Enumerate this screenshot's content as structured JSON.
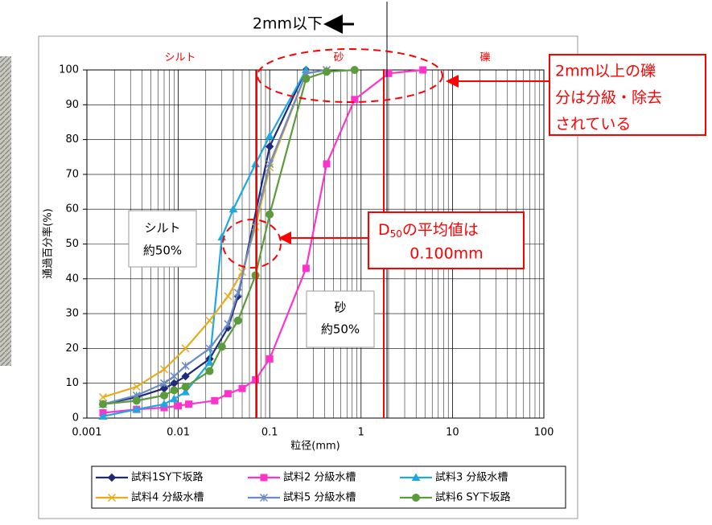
{
  "chart_data": {
    "type": "line",
    "xlabel": "粒径(mm)",
    "ylabel": "通過百分率(%)",
    "log_x": true,
    "grid": true,
    "xlim": [
      0.001,
      100
    ],
    "xticks": [
      0.001,
      0.01,
      0.1,
      1,
      10,
      100
    ],
    "ylim": [
      0,
      100
    ],
    "yticks": [
      0,
      10,
      20,
      30,
      40,
      50,
      60,
      70,
      80,
      90,
      100
    ],
    "series": [
      {
        "name": "試料1SY下坂路",
        "color": "#1f2a7a",
        "marker": "diamond",
        "x": [
          0.0015,
          0.0035,
          0.007,
          0.009,
          0.012,
          0.022,
          0.035,
          0.045,
          0.1,
          0.25
        ],
        "values": [
          4,
          6,
          8.5,
          10,
          12,
          17,
          26,
          35,
          78,
          100
        ]
      },
      {
        "name": "試料2 分級水槽",
        "color": "#ff33cc",
        "marker": "square",
        "x": [
          0.0015,
          0.0035,
          0.007,
          0.01,
          0.013,
          0.025,
          0.035,
          0.05,
          0.07,
          0.1,
          0.25,
          0.42,
          0.85,
          2,
          4.75
        ],
        "values": [
          1.5,
          2.5,
          3,
          3.5,
          4,
          5,
          7,
          8.5,
          11,
          17,
          43,
          73,
          91.5,
          99,
          100
        ]
      },
      {
        "name": "試料3 分級水槽",
        "color": "#1ea7e1",
        "marker": "triangle",
        "x": [
          0.0015,
          0.0035,
          0.007,
          0.009,
          0.012,
          0.022,
          0.03,
          0.04,
          0.07,
          0.1,
          0.25
        ],
        "values": [
          0.5,
          2.5,
          4,
          5.5,
          7.5,
          16,
          52,
          60,
          73,
          81,
          100
        ]
      },
      {
        "name": "試料4 分級水槽",
        "color": "#e6ac1a",
        "marker": "x",
        "x": [
          0.0015,
          0.0035,
          0.007,
          0.012,
          0.022,
          0.035,
          0.05,
          0.07,
          0.1,
          0.25,
          0.42
        ],
        "values": [
          6,
          9,
          14,
          20,
          28,
          35,
          42,
          55,
          72,
          99,
          100
        ]
      },
      {
        "name": "試料5 分級水槽",
        "color": "#6b8cc4",
        "marker": "star",
        "x": [
          0.0015,
          0.0035,
          0.007,
          0.009,
          0.012,
          0.022,
          0.035,
          0.045,
          0.1,
          0.25,
          0.42
        ],
        "values": [
          4,
          6.5,
          10,
          12,
          15,
          20,
          27,
          36,
          73,
          99,
          100
        ]
      },
      {
        "name": "試料6 SY下坂路",
        "color": "#5b9b3c",
        "marker": "circle",
        "x": [
          0.0015,
          0.0035,
          0.007,
          0.009,
          0.012,
          0.022,
          0.03,
          0.045,
          0.07,
          0.1,
          0.25,
          0.42,
          0.85
        ],
        "values": [
          4,
          5,
          6.5,
          8,
          9,
          13.5,
          20.5,
          28,
          41,
          58.5,
          97.5,
          99.5,
          100
        ]
      }
    ],
    "annotations": {
      "top_arrow": "2mm以下",
      "zones": [
        "シルト",
        "砂",
        "礫"
      ],
      "gravel_note": [
        "2mm以上の礫",
        "分は分級・除去",
        "されている"
      ],
      "d50_note": {
        "d": "D",
        "sub": "50",
        "rest": "の平均値は",
        "value": "0.100mm"
      },
      "silt_box": [
        "シルト",
        "約50%"
      ],
      "sand_box": [
        "砂",
        "約50%"
      ]
    }
  }
}
